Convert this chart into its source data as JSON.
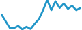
{
  "x": [
    0,
    1,
    2,
    3,
    4,
    5,
    6,
    7,
    8,
    9,
    10,
    11,
    12,
    13,
    14,
    15,
    16,
    17,
    18,
    19
  ],
  "y": [
    6.5,
    5.0,
    3.5,
    3.5,
    4.0,
    3.2,
    3.8,
    3.3,
    4.5,
    5.5,
    7.5,
    9.8,
    7.5,
    9.5,
    8.0,
    9.0,
    7.8,
    8.5,
    7.5,
    8.0
  ],
  "line_color": "#2196c8",
  "line_width": 2.0,
  "background_color": "#ffffff"
}
